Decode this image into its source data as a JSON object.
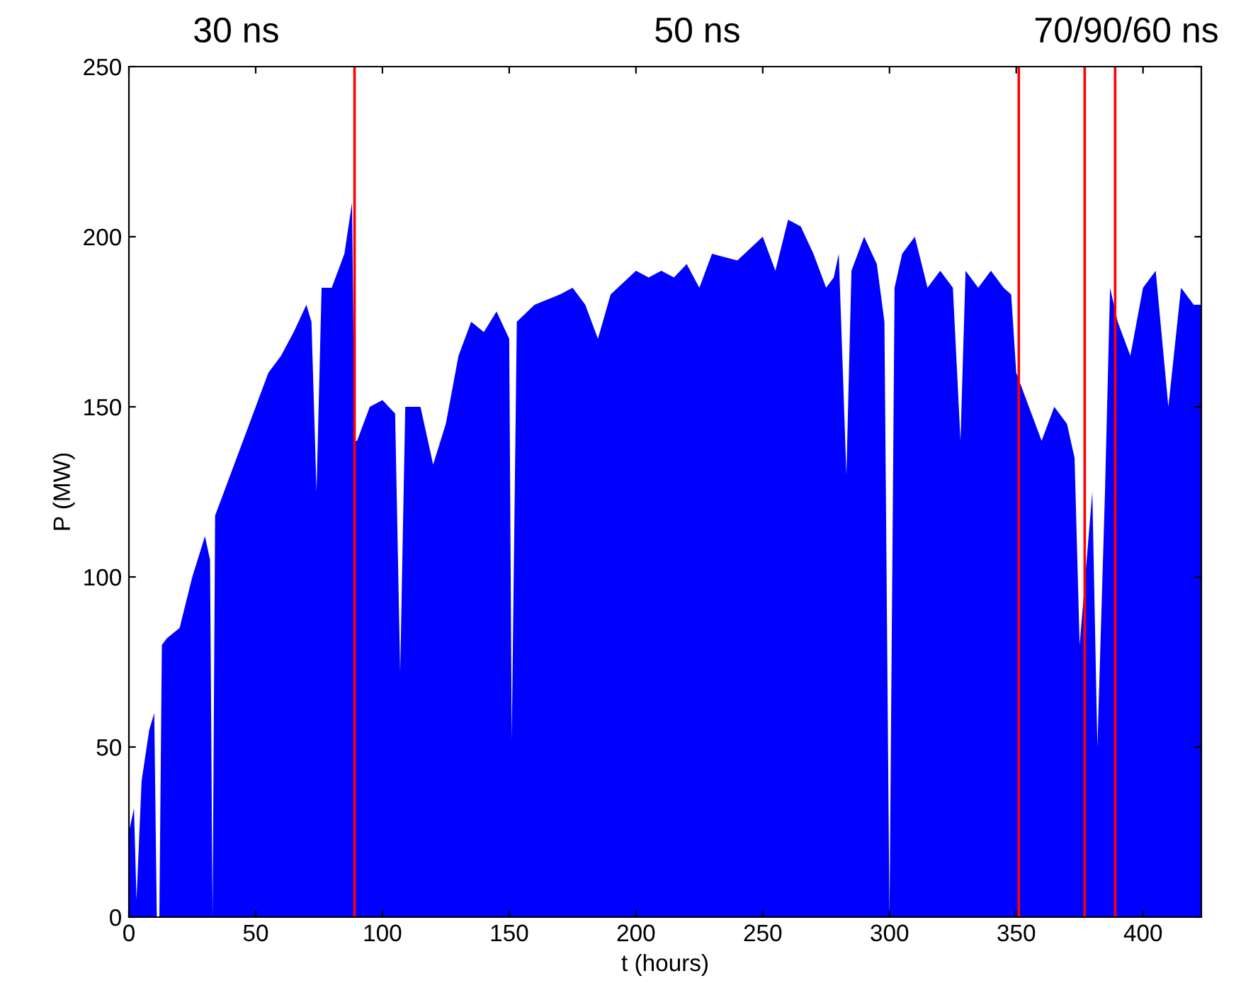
{
  "chart_data": {
    "type": "area",
    "xlabel": "t (hours)",
    "ylabel": "P (MW)",
    "annotations": [
      "30 ns",
      "50 ns",
      "70/90/60 ns"
    ],
    "x": [
      0,
      2,
      3,
      5,
      8,
      10,
      11,
      12,
      13,
      15,
      20,
      25,
      30,
      32,
      33,
      34,
      40,
      45,
      50,
      55,
      60,
      65,
      70,
      72,
      74,
      76,
      80,
      85,
      88,
      89,
      90,
      95,
      100,
      105,
      107,
      109,
      115,
      120,
      125,
      130,
      135,
      140,
      145,
      150,
      151,
      153,
      160,
      170,
      175,
      180,
      185,
      190,
      200,
      205,
      210,
      215,
      220,
      225,
      230,
      240,
      250,
      255,
      260,
      265,
      270,
      275,
      278,
      280,
      283,
      285,
      290,
      295,
      298,
      300,
      302,
      305,
      310,
      315,
      320,
      325,
      328,
      330,
      335,
      340,
      345,
      348,
      350,
      355,
      360,
      365,
      370,
      373,
      375,
      380,
      382,
      385,
      387,
      390,
      395,
      400,
      405,
      410,
      415,
      420,
      423
    ],
    "values": [
      25,
      32,
      5,
      40,
      55,
      60,
      0,
      0,
      80,
      82,
      85,
      100,
      112,
      105,
      0,
      118,
      130,
      140,
      150,
      160,
      165,
      172,
      180,
      175,
      125,
      185,
      185,
      195,
      210,
      140,
      140,
      150,
      152,
      148,
      72,
      150,
      150,
      133,
      145,
      165,
      175,
      172,
      178,
      170,
      52,
      175,
      180,
      183,
      185,
      180,
      170,
      183,
      190,
      188,
      190,
      188,
      192,
      185,
      195,
      193,
      200,
      190,
      205,
      203,
      195,
      185,
      188,
      195,
      130,
      190,
      200,
      192,
      175,
      0,
      185,
      195,
      200,
      185,
      190,
      185,
      140,
      190,
      185,
      190,
      185,
      183,
      160,
      150,
      140,
      150,
      145,
      135,
      80,
      125,
      50,
      125,
      185,
      175,
      165,
      185,
      190,
      150,
      185,
      180,
      180
    ],
    "color": "#0000ff",
    "xlim": [
      0,
      423
    ],
    "ylim": [
      0,
      250
    ],
    "xticks": [
      0,
      50,
      100,
      150,
      200,
      250,
      300,
      350,
      400
    ],
    "yticks": [
      0,
      50,
      100,
      150,
      200,
      250
    ],
    "ref_lines": [
      {
        "axis": "x",
        "value": 89,
        "color": "#ff0000"
      },
      {
        "axis": "x",
        "value": 351,
        "color": "#ff0000"
      },
      {
        "axis": "x",
        "value": 377,
        "color": "#ff0000"
      },
      {
        "axis": "x",
        "value": 389,
        "color": "#ff0000"
      }
    ],
    "grid": false
  }
}
